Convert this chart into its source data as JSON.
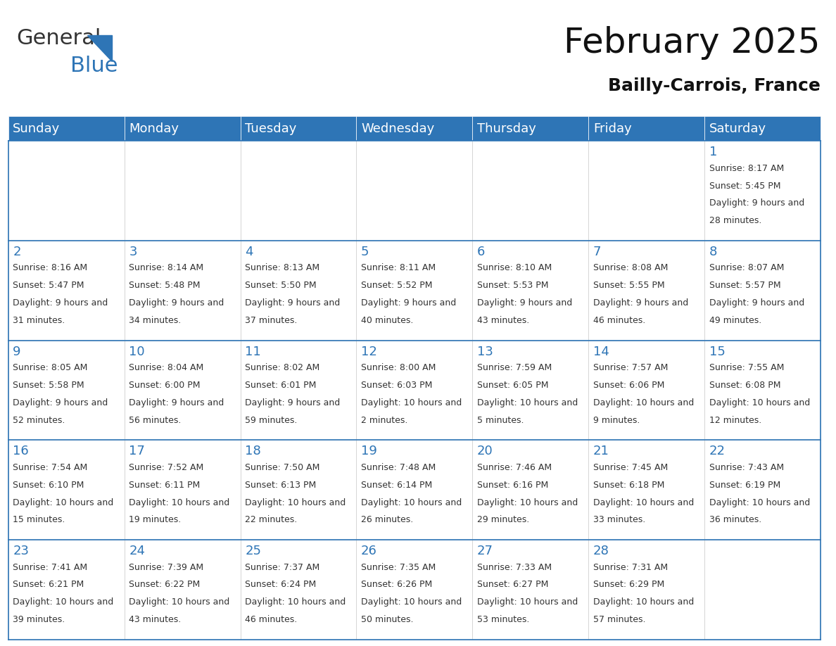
{
  "title": "February 2025",
  "subtitle": "Bailly-Carrois, France",
  "header_color": "#2E75B6",
  "header_text_color": "#FFFFFF",
  "day_names": [
    "Sunday",
    "Monday",
    "Tuesday",
    "Wednesday",
    "Thursday",
    "Friday",
    "Saturday"
  ],
  "title_fontsize": 36,
  "subtitle_fontsize": 18,
  "header_fontsize": 13,
  "cell_number_fontsize": 13,
  "cell_text_fontsize": 9,
  "line_color": "#2E75B6",
  "text_color": "#333333",
  "number_color": "#2E75B6",
  "background_color": "#FFFFFF",
  "logo_general_color": "#333333",
  "logo_blue_color": "#2E75B6",
  "days": [
    {
      "day": 1,
      "col": 6,
      "row": 0,
      "sunrise": "8:17 AM",
      "sunset": "5:45 PM",
      "daylight": "9 hours and 28 minutes"
    },
    {
      "day": 2,
      "col": 0,
      "row": 1,
      "sunrise": "8:16 AM",
      "sunset": "5:47 PM",
      "daylight": "9 hours and 31 minutes"
    },
    {
      "day": 3,
      "col": 1,
      "row": 1,
      "sunrise": "8:14 AM",
      "sunset": "5:48 PM",
      "daylight": "9 hours and 34 minutes"
    },
    {
      "day": 4,
      "col": 2,
      "row": 1,
      "sunrise": "8:13 AM",
      "sunset": "5:50 PM",
      "daylight": "9 hours and 37 minutes"
    },
    {
      "day": 5,
      "col": 3,
      "row": 1,
      "sunrise": "8:11 AM",
      "sunset": "5:52 PM",
      "daylight": "9 hours and 40 minutes"
    },
    {
      "day": 6,
      "col": 4,
      "row": 1,
      "sunrise": "8:10 AM",
      "sunset": "5:53 PM",
      "daylight": "9 hours and 43 minutes"
    },
    {
      "day": 7,
      "col": 5,
      "row": 1,
      "sunrise": "8:08 AM",
      "sunset": "5:55 PM",
      "daylight": "9 hours and 46 minutes"
    },
    {
      "day": 8,
      "col": 6,
      "row": 1,
      "sunrise": "8:07 AM",
      "sunset": "5:57 PM",
      "daylight": "9 hours and 49 minutes"
    },
    {
      "day": 9,
      "col": 0,
      "row": 2,
      "sunrise": "8:05 AM",
      "sunset": "5:58 PM",
      "daylight": "9 hours and 52 minutes"
    },
    {
      "day": 10,
      "col": 1,
      "row": 2,
      "sunrise": "8:04 AM",
      "sunset": "6:00 PM",
      "daylight": "9 hours and 56 minutes"
    },
    {
      "day": 11,
      "col": 2,
      "row": 2,
      "sunrise": "8:02 AM",
      "sunset": "6:01 PM",
      "daylight": "9 hours and 59 minutes"
    },
    {
      "day": 12,
      "col": 3,
      "row": 2,
      "sunrise": "8:00 AM",
      "sunset": "6:03 PM",
      "daylight": "10 hours and 2 minutes"
    },
    {
      "day": 13,
      "col": 4,
      "row": 2,
      "sunrise": "7:59 AM",
      "sunset": "6:05 PM",
      "daylight": "10 hours and 5 minutes"
    },
    {
      "day": 14,
      "col": 5,
      "row": 2,
      "sunrise": "7:57 AM",
      "sunset": "6:06 PM",
      "daylight": "10 hours and 9 minutes"
    },
    {
      "day": 15,
      "col": 6,
      "row": 2,
      "sunrise": "7:55 AM",
      "sunset": "6:08 PM",
      "daylight": "10 hours and 12 minutes"
    },
    {
      "day": 16,
      "col": 0,
      "row": 3,
      "sunrise": "7:54 AM",
      "sunset": "6:10 PM",
      "daylight": "10 hours and 15 minutes"
    },
    {
      "day": 17,
      "col": 1,
      "row": 3,
      "sunrise": "7:52 AM",
      "sunset": "6:11 PM",
      "daylight": "10 hours and 19 minutes"
    },
    {
      "day": 18,
      "col": 2,
      "row": 3,
      "sunrise": "7:50 AM",
      "sunset": "6:13 PM",
      "daylight": "10 hours and 22 minutes"
    },
    {
      "day": 19,
      "col": 3,
      "row": 3,
      "sunrise": "7:48 AM",
      "sunset": "6:14 PM",
      "daylight": "10 hours and 26 minutes"
    },
    {
      "day": 20,
      "col": 4,
      "row": 3,
      "sunrise": "7:46 AM",
      "sunset": "6:16 PM",
      "daylight": "10 hours and 29 minutes"
    },
    {
      "day": 21,
      "col": 5,
      "row": 3,
      "sunrise": "7:45 AM",
      "sunset": "6:18 PM",
      "daylight": "10 hours and 33 minutes"
    },
    {
      "day": 22,
      "col": 6,
      "row": 3,
      "sunrise": "7:43 AM",
      "sunset": "6:19 PM",
      "daylight": "10 hours and 36 minutes"
    },
    {
      "day": 23,
      "col": 0,
      "row": 4,
      "sunrise": "7:41 AM",
      "sunset": "6:21 PM",
      "daylight": "10 hours and 39 minutes"
    },
    {
      "day": 24,
      "col": 1,
      "row": 4,
      "sunrise": "7:39 AM",
      "sunset": "6:22 PM",
      "daylight": "10 hours and 43 minutes"
    },
    {
      "day": 25,
      "col": 2,
      "row": 4,
      "sunrise": "7:37 AM",
      "sunset": "6:24 PM",
      "daylight": "10 hours and 46 minutes"
    },
    {
      "day": 26,
      "col": 3,
      "row": 4,
      "sunrise": "7:35 AM",
      "sunset": "6:26 PM",
      "daylight": "10 hours and 50 minutes"
    },
    {
      "day": 27,
      "col": 4,
      "row": 4,
      "sunrise": "7:33 AM",
      "sunset": "6:27 PM",
      "daylight": "10 hours and 53 minutes"
    },
    {
      "day": 28,
      "col": 5,
      "row": 4,
      "sunrise": "7:31 AM",
      "sunset": "6:29 PM",
      "daylight": "10 hours and 57 minutes"
    }
  ]
}
